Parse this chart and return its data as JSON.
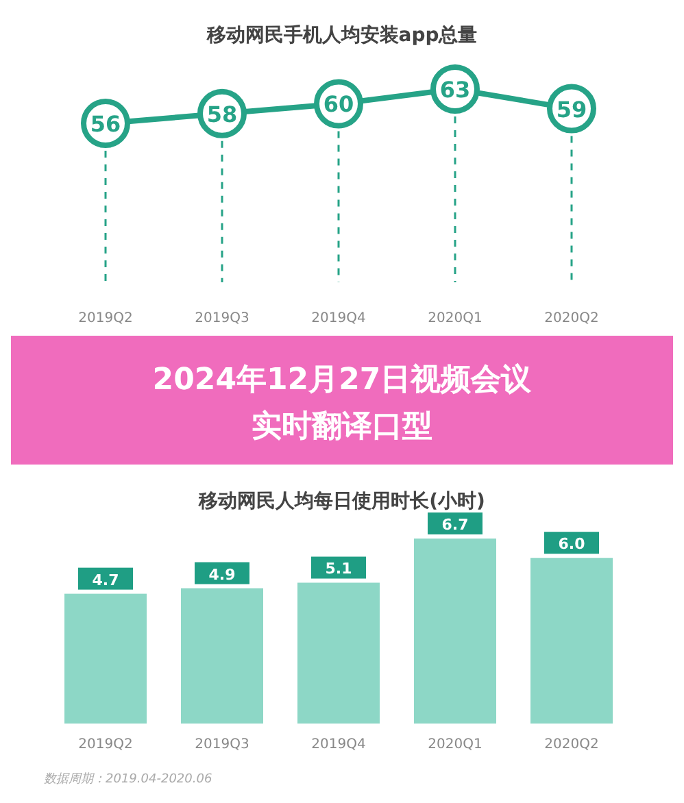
{
  "chart_data": [
    {
      "type": "line",
      "title": "移动网民手机人均安装app总量",
      "categories": [
        "2019Q2",
        "2019Q3",
        "2019Q4",
        "2020Q1",
        "2020Q2"
      ],
      "values": [
        56,
        58,
        60,
        63,
        59
      ],
      "color": "#26a387",
      "data_labels": true,
      "marker": "circle",
      "grid": "x"
    },
    {
      "type": "bar",
      "title": "移动网民人均每日使用时长(小时)",
      "categories": [
        "2019Q2",
        "2019Q3",
        "2019Q4",
        "2020Q1",
        "2020Q2"
      ],
      "values": [
        4.7,
        4.9,
        5.1,
        6.7,
        6.0
      ],
      "color": "#8dd7c6",
      "value_labels": [
        "4.7",
        "4.9",
        "5.1",
        "6.7",
        "6.0"
      ],
      "annotations": [
        "2024年12月27日视频会议实时翻译口型",
        "数据周期：2019.04-2020.06"
      ]
    }
  ]
}
